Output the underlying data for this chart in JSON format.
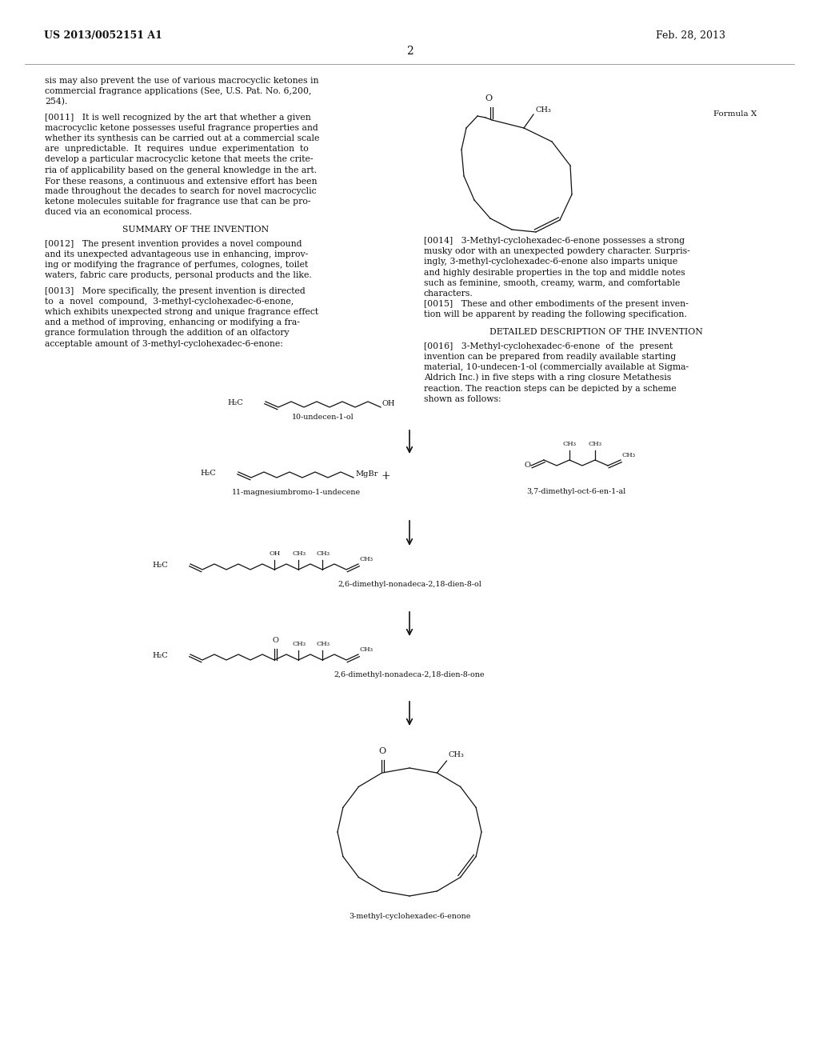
{
  "background_color": "#ffffff",
  "header_left": "US 2013/0052151 A1",
  "header_right": "Feb. 28, 2013",
  "page_number": "2",
  "formula_x_label": "Formula X",
  "left_col_text_1": [
    "sis may also prevent the use of various macrocyclic ketones in",
    "commercial fragrance applications (See, U.S. Pat. No. 6,200,",
    "254)."
  ],
  "left_col_text_2": [
    "[0011]   It is well recognized by the art that whether a given",
    "macrocyclic ketone possesses useful fragrance properties and",
    "whether its synthesis can be carried out at a commercial scale",
    "are  unpredictable.  It  requires  undue  experimentation  to",
    "develop a particular macrocyclic ketone that meets the crite-",
    "ria of applicability based on the general knowledge in the art.",
    "For these reasons, a continuous and extensive effort has been",
    "made throughout the decades to search for novel macrocyclic",
    "ketone molecules suitable for fragrance use that can be pro-",
    "duced via an economical process."
  ],
  "summary_title": "SUMMARY OF THE INVENTION",
  "left_col_text_3": [
    "[0012]   The present invention provides a novel compound",
    "and its unexpected advantageous use in enhancing, improv-",
    "ing or modifying the fragrance of perfumes, colognes, toilet",
    "waters, fabric care products, personal products and the like."
  ],
  "left_col_text_4": [
    "[0013]   More specifically, the present invention is directed",
    "to  a  novel  compound,  3-methyl-cyclohexadec-6-enone,",
    "which exhibits unexpected strong and unique fragrance effect",
    "and a method of improving, enhancing or modifying a fra-",
    "grance formulation through the addition of an olfactory",
    "acceptable amount of 3-methyl-cyclohexadec-6-enone:"
  ],
  "right_col_text_1": [
    "[0014]   3-Methyl-cyclohexadec-6-enone possesses a strong",
    "musky odor with an unexpected powdery character. Surpris-",
    "ingly, 3-methyl-cyclohexadec-6-enone also imparts unique",
    "and highly desirable properties in the top and middle notes",
    "such as feminine, smooth, creamy, warm, and comfortable",
    "characters.",
    "[0015]   These and other embodiments of the present inven-",
    "tion will be apparent by reading the following specification."
  ],
  "detailed_title": "DETAILED DESCRIPTION OF THE INVENTION",
  "right_col_text_2": [
    "[0016]   3-Methyl-cyclohexadec-6-enone  of  the  present",
    "invention can be prepared from readily available starting",
    "material, 10-undecen-1-ol (commercially available at Sigma-",
    "Aldrich Inc.) in five steps with a ring closure Metathesis",
    "reaction. The reaction steps can be depicted by a scheme",
    "shown as follows:"
  ],
  "compound_labels": [
    "10-undecen-1-ol",
    "11-magnesiumbromo-1-undecene",
    "3,7-dimethyl-oct-6-en-1-al",
    "2,6-dimethyl-nonadeca-2,18-dien-8-ol",
    "2,6-dimethyl-nonadeca-2,18-dien-8-one",
    "3-methyl-cyclohexadec-6-enone"
  ],
  "font_size_body": 7.8,
  "font_size_header": 9.0,
  "font_size_label": 7.5,
  "font_size_compound": 6.8,
  "font_size_chem": 7.0
}
